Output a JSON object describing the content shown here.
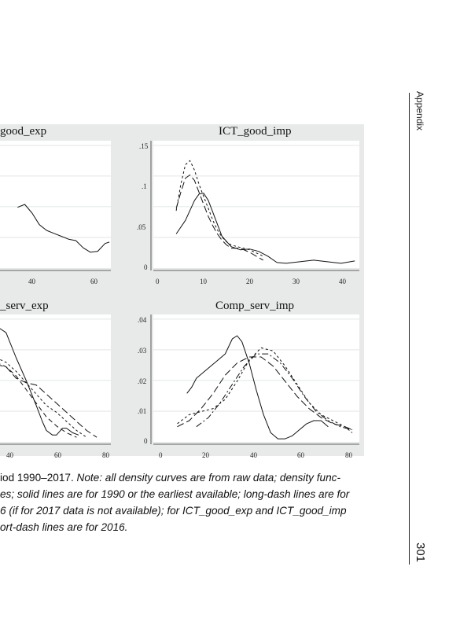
{
  "page": {
    "running_head": "Appendix",
    "page_number": "301",
    "caption": {
      "line1_lead": "iod 1990–2017. ",
      "line1_rest": "Note: all density curves are from raw data; density func-",
      "line2": "es; solid lines are for 1990 or the earliest available; long-dash lines are for",
      "line3": "6 (if for 2017 data is not available); for ICT_good_exp and ICT_good_imp",
      "line4": "ort-dash lines are for 2016."
    }
  },
  "chart_data": [
    {
      "type": "line",
      "title": "good_exp",
      "xticks": [
        "40",
        "60"
      ],
      "series": [
        {
          "style": "solid",
          "x": [
            0,
            5,
            10,
            15,
            20,
            25,
            30,
            35,
            40,
            45,
            50,
            55,
            60,
            63
          ],
          "y": [
            0.02,
            0.021,
            0.018,
            0.014,
            0.012,
            0.011,
            0.01,
            0.009,
            0.0085,
            0.006,
            0.0045,
            0.0048,
            0.0075,
            0.008
          ]
        }
      ]
    },
    {
      "type": "line",
      "title": "ICT_good_imp",
      "xlim": [
        -2,
        43
      ],
      "ylim": [
        -0.005,
        0.155
      ],
      "xticks": [
        "0",
        "10",
        "20",
        "30",
        "40"
      ],
      "yticks": [
        "0",
        ".05",
        ".1",
        ".15"
      ],
      "series": [
        {
          "style": "solid",
          "x": [
            3,
            5,
            7,
            8,
            9,
            10,
            11,
            12,
            13,
            15,
            17,
            19,
            21,
            23,
            25,
            27,
            30,
            33,
            36,
            39,
            42
          ],
          "y": [
            0.038,
            0.055,
            0.08,
            0.088,
            0.089,
            0.08,
            0.065,
            0.05,
            0.035,
            0.022,
            0.018,
            0.019,
            0.016,
            0.01,
            0.002,
            0.001,
            0.003,
            0.005,
            0.003,
            0.001,
            0.004
          ]
        },
        {
          "style": "long-dash",
          "x": [
            3,
            4,
            5,
            6,
            7,
            8,
            9,
            10,
            11,
            12,
            13,
            14,
            15,
            17,
            19,
            22
          ],
          "y": [
            0.07,
            0.09,
            0.108,
            0.112,
            0.105,
            0.09,
            0.075,
            0.06,
            0.048,
            0.038,
            0.03,
            0.024,
            0.02,
            0.02,
            0.015,
            0.005
          ]
        },
        {
          "style": "short-dash",
          "x": [
            3,
            4,
            5,
            6,
            7,
            8,
            9,
            10,
            11,
            12,
            13,
            14,
            15,
            17,
            19,
            22
          ],
          "y": [
            0.067,
            0.1,
            0.125,
            0.13,
            0.118,
            0.1,
            0.085,
            0.07,
            0.055,
            0.043,
            0.034,
            0.028,
            0.024,
            0.021,
            0.018,
            0.01
          ]
        }
      ]
    },
    {
      "type": "line",
      "title": "_serv_exp",
      "xticks": [
        "40",
        "60",
        "80"
      ],
      "series": [
        {
          "style": "solid",
          "x": [
            25,
            30,
            35,
            40,
            45,
            48,
            50,
            53,
            55,
            58,
            60,
            63,
            66
          ],
          "y": [
            0.05,
            0.047,
            0.036,
            0.026,
            0.015,
            0.008,
            0.004,
            0.002,
            0.002,
            0.005,
            0.005,
            0.003,
            0.002
          ]
        },
        {
          "style": "long-dash",
          "x": [
            25,
            30,
            35,
            40,
            45,
            50,
            55,
            60,
            65,
            70,
            75
          ],
          "y": [
            0.033,
            0.032,
            0.027,
            0.025,
            0.024,
            0.02,
            0.016,
            0.012,
            0.008,
            0.004,
            0.001
          ]
        },
        {
          "style": "short-dash",
          "x": [
            25,
            30,
            35,
            40,
            45,
            50,
            55,
            60,
            65,
            70
          ],
          "y": [
            0.036,
            0.034,
            0.03,
            0.025,
            0.02,
            0.015,
            0.012,
            0.008,
            0.004,
            0.001
          ]
        },
        {
          "style": "medium-dash",
          "x": [
            25,
            30,
            35,
            40,
            45,
            50,
            55,
            60,
            65
          ],
          "y": [
            0.034,
            0.032,
            0.028,
            0.022,
            0.016,
            0.01,
            0.006,
            0.003,
            0.001
          ]
        }
      ]
    },
    {
      "type": "line",
      "title": "Comp_serv_imp",
      "xlim": [
        -3,
        83
      ],
      "ylim": [
        -0.001,
        0.041
      ],
      "xticks": [
        "0",
        "20",
        "40",
        "60",
        "80"
      ],
      "yticks": [
        "0",
        ".01",
        ".02",
        ".03",
        ".04"
      ],
      "series": [
        {
          "style": "solid",
          "x": [
            11,
            13,
            15,
            18,
            21,
            24,
            27,
            30,
            32,
            34,
            37,
            40,
            43,
            46,
            49,
            52,
            55,
            58,
            61,
            64,
            67,
            70
          ],
          "y": [
            0.015,
            0.017,
            0.02,
            0.022,
            0.024,
            0.026,
            0.028,
            0.033,
            0.034,
            0.032,
            0.025,
            0.016,
            0.008,
            0.002,
            0.0,
            0.0,
            0.001,
            0.003,
            0.005,
            0.006,
            0.006,
            0.004
          ]
        },
        {
          "style": "long-dash",
          "x": [
            7,
            12,
            17,
            22,
            27,
            32,
            37,
            42,
            47,
            52,
            57,
            62,
            67,
            72,
            77,
            80
          ],
          "y": [
            0.004,
            0.006,
            0.01,
            0.015,
            0.021,
            0.025,
            0.027,
            0.027,
            0.024,
            0.019,
            0.014,
            0.01,
            0.007,
            0.005,
            0.004,
            0.003
          ]
        },
        {
          "style": "short-dash",
          "x": [
            7,
            12,
            17,
            22,
            27,
            32,
            37,
            42,
            47,
            52,
            57,
            62,
            67,
            72,
            77,
            80
          ],
          "y": [
            0.005,
            0.008,
            0.009,
            0.01,
            0.013,
            0.019,
            0.026,
            0.03,
            0.029,
            0.024,
            0.018,
            0.012,
            0.008,
            0.006,
            0.004,
            0.002
          ]
        },
        {
          "style": "dash-dot",
          "x": [
            15,
            20,
            25,
            30,
            35,
            40,
            45,
            50,
            55,
            60,
            65,
            70,
            75,
            80
          ],
          "y": [
            0.004,
            0.007,
            0.012,
            0.018,
            0.024,
            0.028,
            0.028,
            0.025,
            0.02,
            0.014,
            0.009,
            0.006,
            0.004,
            0.003
          ]
        }
      ]
    }
  ]
}
